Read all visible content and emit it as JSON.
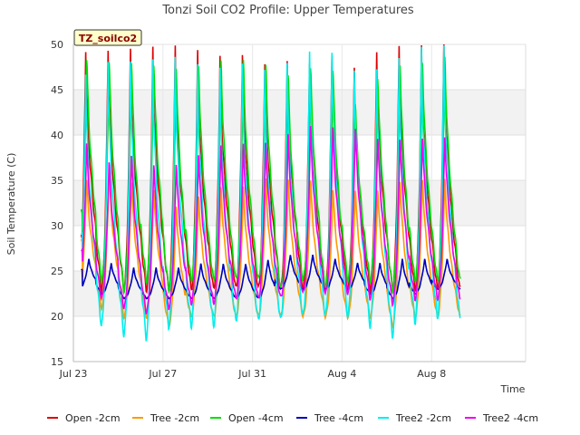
{
  "chart_data": {
    "type": "line",
    "title": "Tonzi Soil CO2 Profile: Upper Temperatures",
    "xlabel": "Time",
    "ylabel": "Soil Temperature (C)",
    "badge": "TZ_soilco2",
    "xlim": [
      0,
      20.2
    ],
    "ylim": [
      15,
      50
    ],
    "yticks": [
      15,
      20,
      25,
      30,
      35,
      40,
      45,
      50
    ],
    "xticks": [
      {
        "value": 0,
        "label": "Jul 23"
      },
      {
        "value": 4,
        "label": "Jul 27"
      },
      {
        "value": 8,
        "label": "Jul 31"
      },
      {
        "value": 12,
        "label": "Aug 4"
      },
      {
        "value": 16,
        "label": "Aug 8"
      }
    ],
    "grid": true,
    "legend_position": "bottom",
    "series_summary": "daily cycles, day 0.35 to 17.3",
    "series": [
      {
        "name": "Open -2cm",
        "color": "#dd0000",
        "start": 29.0,
        "min": [
          24,
          23,
          23,
          23,
          23,
          23,
          23,
          23,
          23,
          23,
          23,
          23,
          23,
          23,
          23,
          23,
          23
        ],
        "max": [
          49.5,
          49.5,
          49.5,
          49.5,
          49.5,
          49,
          48.5,
          48.8,
          48,
          48.5,
          48.3,
          49,
          47.5,
          49,
          49.5,
          49.5,
          50
        ]
      },
      {
        "name": "Tree -2cm",
        "color": "#ff9900",
        "start": 28.5,
        "min": [
          22,
          21,
          20,
          20,
          19,
          20,
          20,
          20,
          20,
          20,
          20,
          20,
          20,
          20,
          19,
          20,
          20
        ],
        "max": [
          36,
          37,
          36,
          35,
          33,
          34,
          35,
          35,
          36,
          36,
          36,
          35,
          35,
          35,
          36,
          36,
          36
        ]
      },
      {
        "name": "Open -4cm",
        "color": "#00dd00",
        "start": 31.8,
        "min": [
          25,
          24,
          23,
          24,
          23,
          24,
          24,
          24,
          24,
          23,
          24,
          23,
          24,
          24,
          23,
          24,
          24
        ],
        "max": [
          50,
          50,
          50,
          49.5,
          49,
          49,
          49.5,
          49.5,
          49,
          48,
          49,
          49,
          45,
          48,
          49.5,
          49.5,
          50
        ]
      },
      {
        "name": "Tree -4cm",
        "color": "#0000bb",
        "start": 25.2,
        "min": [
          23,
          22.5,
          22,
          22,
          22,
          22,
          22,
          22,
          22,
          23,
          23,
          23,
          23,
          22.5,
          22,
          22.5,
          23
        ],
        "max": [
          26.5,
          26,
          25.5,
          25.5,
          25.5,
          26,
          26,
          26,
          26.5,
          27,
          27,
          26.5,
          26,
          26,
          26.5,
          26.5,
          26.5
        ]
      },
      {
        "name": "Tree2 -2cm",
        "color": "#00eeee",
        "start": 29.5,
        "min": [
          20,
          19,
          18,
          17.7,
          19,
          19,
          19,
          19.5,
          19.5,
          19.5,
          20,
          20,
          20,
          19,
          18,
          19.5,
          20
        ],
        "max": [
          47,
          48.5,
          48.5,
          48.5,
          48.5,
          47.5,
          47,
          47.5,
          47,
          48,
          49.5,
          49.5,
          47.5,
          47.5,
          48.5,
          49.5,
          49.5
        ]
      },
      {
        "name": "Tree2 -4cm",
        "color": "#ee00ee",
        "start": 27.5,
        "min": [
          23,
          22,
          21,
          20.5,
          21,
          21.5,
          21.5,
          22,
          22,
          22,
          22.5,
          22.5,
          22.5,
          22,
          21.5,
          22,
          22
        ],
        "max": [
          40,
          38,
          39,
          38,
          38,
          39,
          40,
          40,
          40,
          41,
          42,
          42,
          42,
          41,
          41,
          41,
          41
        ]
      }
    ]
  }
}
